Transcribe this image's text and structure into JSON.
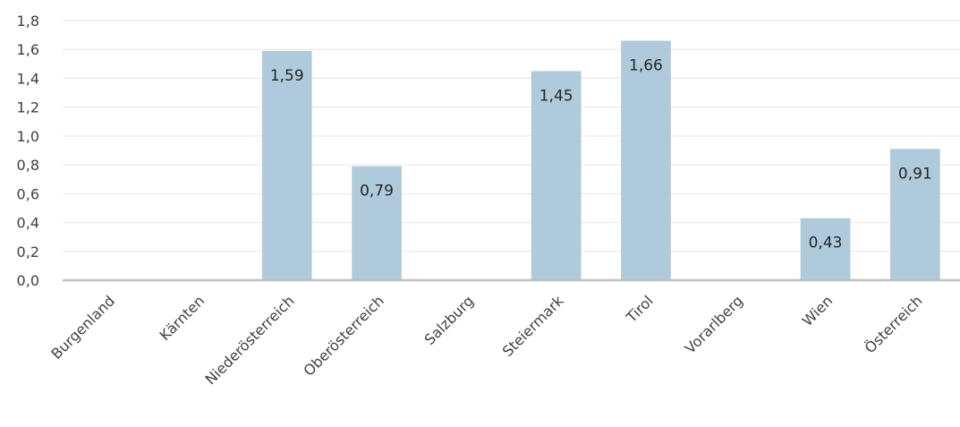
{
  "chart_data": {
    "type": "bar",
    "title": "",
    "xlabel": "",
    "ylabel": "",
    "categories": [
      "Burgenland",
      "Kärnten",
      "Niederösterreich",
      "Oberösterreich",
      "Salzburg",
      "Steiermark",
      "Tirol",
      "Vorarlberg",
      "Wien",
      "Österreich"
    ],
    "values": [
      null,
      null,
      1.59,
      0.79,
      null,
      1.45,
      1.66,
      null,
      0.43,
      0.91
    ],
    "data_labels": [
      "",
      "",
      "1,59",
      "0,79",
      "",
      "1,45",
      "1,66",
      "",
      "0,43",
      "0,91"
    ],
    "yticks": [
      0,
      0.2,
      0.4,
      0.6,
      0.8,
      1.0,
      1.2,
      1.4,
      1.6,
      1.8
    ],
    "ytick_labels": [
      "0,0",
      "0,2",
      "0,4",
      "0,6",
      "0,8",
      "1,0",
      "1,2",
      "1,4",
      "1,6",
      "1,8"
    ],
    "ylim": [
      0,
      1.8
    ],
    "grid": true,
    "legend": "none",
    "bar_color": "#afcadb",
    "grid_color": "#e6e6e6",
    "axis_color": "#bfbfbf"
  }
}
